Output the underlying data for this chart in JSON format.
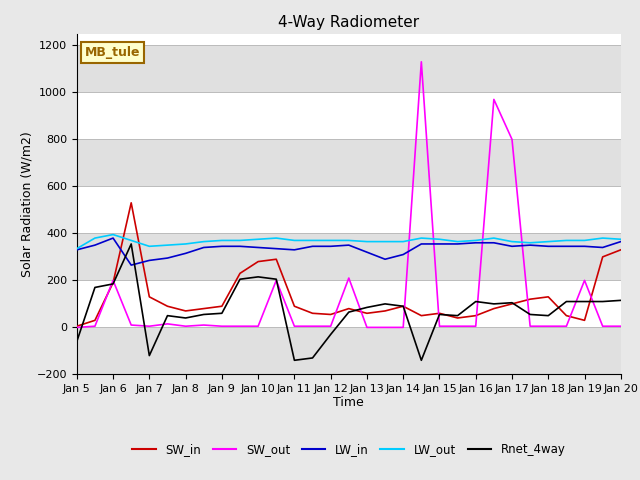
{
  "title": "4-Way Radiometer",
  "xlabel": "Time",
  "ylabel": "Solar Radiation (W/m2)",
  "ylim": [
    -200,
    1250
  ],
  "ylim_display": [
    -200,
    1200
  ],
  "xtick_labels": [
    "Jan 5",
    "Jan 6",
    "Jan 7",
    "Jan 8",
    "Jan 9",
    "Jan 10",
    "Jan 11",
    "Jan 12",
    "Jan 13",
    "Jan 14",
    "Jan 15",
    "Jan 16",
    "Jan 17",
    "Jan 18",
    "Jan 19",
    "Jan 20"
  ],
  "annotation_text": "MB_tule",
  "annotation_bg": "#FFFFCC",
  "annotation_border": "#996600",
  "colors": {
    "SW_in": "#CC0000",
    "SW_out": "#FF00FF",
    "LW_in": "#0000CC",
    "LW_out": "#00CCFF",
    "Rnet_4way": "#000000"
  },
  "legend_labels": [
    "SW_in",
    "SW_out",
    "LW_in",
    "LW_out",
    "Rnet_4way"
  ],
  "background_color": "#E8E8E8",
  "plot_bg": "#FFFFFF",
  "band_color": "#E0E0E0",
  "SW_in": [
    5,
    30,
    190,
    530,
    130,
    90,
    70,
    80,
    90,
    230,
    280,
    290,
    90,
    60,
    55,
    80,
    60,
    70,
    90,
    50,
    60,
    40,
    50,
    80,
    100,
    120,
    130,
    50,
    30,
    300,
    330
  ],
  "SW_out": [
    0,
    5,
    200,
    10,
    5,
    15,
    5,
    10,
    5,
    5,
    5,
    200,
    5,
    5,
    5,
    210,
    0,
    0,
    0,
    1130,
    5,
    5,
    5,
    970,
    800,
    5,
    5,
    5,
    200,
    5,
    5
  ],
  "LW_in": [
    330,
    350,
    380,
    265,
    285,
    295,
    315,
    340,
    345,
    345,
    340,
    335,
    330,
    345,
    345,
    350,
    320,
    290,
    310,
    355,
    355,
    355,
    360,
    360,
    345,
    350,
    345,
    345,
    345,
    340,
    365
  ],
  "LW_out": [
    335,
    380,
    395,
    370,
    345,
    350,
    355,
    365,
    370,
    370,
    375,
    380,
    370,
    370,
    370,
    370,
    365,
    365,
    365,
    380,
    375,
    365,
    370,
    380,
    365,
    360,
    365,
    370,
    370,
    380,
    375
  ],
  "Rnet_4way": [
    -60,
    170,
    185,
    355,
    -120,
    50,
    40,
    55,
    60,
    205,
    215,
    205,
    -140,
    -130,
    -30,
    65,
    85,
    100,
    90,
    -140,
    55,
    50,
    110,
    100,
    105,
    55,
    50,
    110,
    110,
    110,
    115
  ]
}
